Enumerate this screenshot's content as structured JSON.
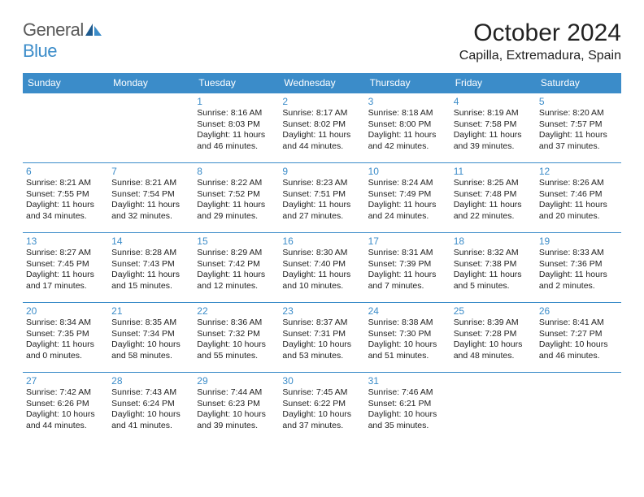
{
  "logo": {
    "text1": "General",
    "text2": "Blue"
  },
  "title": "October 2024",
  "location": "Capilla, Extremadura, Spain",
  "colors": {
    "accent": "#3b8cc9",
    "text": "#222222",
    "logo_gray": "#5a5a5a",
    "background": "#ffffff"
  },
  "daysOfWeek": [
    "Sunday",
    "Monday",
    "Tuesday",
    "Wednesday",
    "Thursday",
    "Friday",
    "Saturday"
  ],
  "weeks": [
    [
      null,
      null,
      {
        "n": "1",
        "sr": "Sunrise: 8:16 AM",
        "ss": "Sunset: 8:03 PM",
        "dl": "Daylight: 11 hours and 46 minutes."
      },
      {
        "n": "2",
        "sr": "Sunrise: 8:17 AM",
        "ss": "Sunset: 8:02 PM",
        "dl": "Daylight: 11 hours and 44 minutes."
      },
      {
        "n": "3",
        "sr": "Sunrise: 8:18 AM",
        "ss": "Sunset: 8:00 PM",
        "dl": "Daylight: 11 hours and 42 minutes."
      },
      {
        "n": "4",
        "sr": "Sunrise: 8:19 AM",
        "ss": "Sunset: 7:58 PM",
        "dl": "Daylight: 11 hours and 39 minutes."
      },
      {
        "n": "5",
        "sr": "Sunrise: 8:20 AM",
        "ss": "Sunset: 7:57 PM",
        "dl": "Daylight: 11 hours and 37 minutes."
      }
    ],
    [
      {
        "n": "6",
        "sr": "Sunrise: 8:21 AM",
        "ss": "Sunset: 7:55 PM",
        "dl": "Daylight: 11 hours and 34 minutes."
      },
      {
        "n": "7",
        "sr": "Sunrise: 8:21 AM",
        "ss": "Sunset: 7:54 PM",
        "dl": "Daylight: 11 hours and 32 minutes."
      },
      {
        "n": "8",
        "sr": "Sunrise: 8:22 AM",
        "ss": "Sunset: 7:52 PM",
        "dl": "Daylight: 11 hours and 29 minutes."
      },
      {
        "n": "9",
        "sr": "Sunrise: 8:23 AM",
        "ss": "Sunset: 7:51 PM",
        "dl": "Daylight: 11 hours and 27 minutes."
      },
      {
        "n": "10",
        "sr": "Sunrise: 8:24 AM",
        "ss": "Sunset: 7:49 PM",
        "dl": "Daylight: 11 hours and 24 minutes."
      },
      {
        "n": "11",
        "sr": "Sunrise: 8:25 AM",
        "ss": "Sunset: 7:48 PM",
        "dl": "Daylight: 11 hours and 22 minutes."
      },
      {
        "n": "12",
        "sr": "Sunrise: 8:26 AM",
        "ss": "Sunset: 7:46 PM",
        "dl": "Daylight: 11 hours and 20 minutes."
      }
    ],
    [
      {
        "n": "13",
        "sr": "Sunrise: 8:27 AM",
        "ss": "Sunset: 7:45 PM",
        "dl": "Daylight: 11 hours and 17 minutes."
      },
      {
        "n": "14",
        "sr": "Sunrise: 8:28 AM",
        "ss": "Sunset: 7:43 PM",
        "dl": "Daylight: 11 hours and 15 minutes."
      },
      {
        "n": "15",
        "sr": "Sunrise: 8:29 AM",
        "ss": "Sunset: 7:42 PM",
        "dl": "Daylight: 11 hours and 12 minutes."
      },
      {
        "n": "16",
        "sr": "Sunrise: 8:30 AM",
        "ss": "Sunset: 7:40 PM",
        "dl": "Daylight: 11 hours and 10 minutes."
      },
      {
        "n": "17",
        "sr": "Sunrise: 8:31 AM",
        "ss": "Sunset: 7:39 PM",
        "dl": "Daylight: 11 hours and 7 minutes."
      },
      {
        "n": "18",
        "sr": "Sunrise: 8:32 AM",
        "ss": "Sunset: 7:38 PM",
        "dl": "Daylight: 11 hours and 5 minutes."
      },
      {
        "n": "19",
        "sr": "Sunrise: 8:33 AM",
        "ss": "Sunset: 7:36 PM",
        "dl": "Daylight: 11 hours and 2 minutes."
      }
    ],
    [
      {
        "n": "20",
        "sr": "Sunrise: 8:34 AM",
        "ss": "Sunset: 7:35 PM",
        "dl": "Daylight: 11 hours and 0 minutes."
      },
      {
        "n": "21",
        "sr": "Sunrise: 8:35 AM",
        "ss": "Sunset: 7:34 PM",
        "dl": "Daylight: 10 hours and 58 minutes."
      },
      {
        "n": "22",
        "sr": "Sunrise: 8:36 AM",
        "ss": "Sunset: 7:32 PM",
        "dl": "Daylight: 10 hours and 55 minutes."
      },
      {
        "n": "23",
        "sr": "Sunrise: 8:37 AM",
        "ss": "Sunset: 7:31 PM",
        "dl": "Daylight: 10 hours and 53 minutes."
      },
      {
        "n": "24",
        "sr": "Sunrise: 8:38 AM",
        "ss": "Sunset: 7:30 PM",
        "dl": "Daylight: 10 hours and 51 minutes."
      },
      {
        "n": "25",
        "sr": "Sunrise: 8:39 AM",
        "ss": "Sunset: 7:28 PM",
        "dl": "Daylight: 10 hours and 48 minutes."
      },
      {
        "n": "26",
        "sr": "Sunrise: 8:41 AM",
        "ss": "Sunset: 7:27 PM",
        "dl": "Daylight: 10 hours and 46 minutes."
      }
    ],
    [
      {
        "n": "27",
        "sr": "Sunrise: 7:42 AM",
        "ss": "Sunset: 6:26 PM",
        "dl": "Daylight: 10 hours and 44 minutes."
      },
      {
        "n": "28",
        "sr": "Sunrise: 7:43 AM",
        "ss": "Sunset: 6:24 PM",
        "dl": "Daylight: 10 hours and 41 minutes."
      },
      {
        "n": "29",
        "sr": "Sunrise: 7:44 AM",
        "ss": "Sunset: 6:23 PM",
        "dl": "Daylight: 10 hours and 39 minutes."
      },
      {
        "n": "30",
        "sr": "Sunrise: 7:45 AM",
        "ss": "Sunset: 6:22 PM",
        "dl": "Daylight: 10 hours and 37 minutes."
      },
      {
        "n": "31",
        "sr": "Sunrise: 7:46 AM",
        "ss": "Sunset: 6:21 PM",
        "dl": "Daylight: 10 hours and 35 minutes."
      },
      null,
      null
    ]
  ]
}
